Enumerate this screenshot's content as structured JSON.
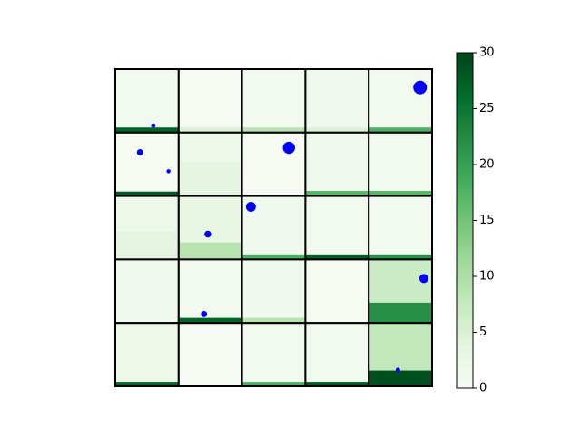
{
  "chart_data": {
    "type": "heatmap",
    "colormap": "Greens",
    "point_color": "#0000ff",
    "xlim": [
      0,
      5
    ],
    "ylim": [
      5,
      0
    ],
    "cells": [
      [
        {
          "top": 1,
          "bottom": 27,
          "split": 0.08
        },
        {
          "top": 0.5,
          "bottom": 5,
          "split": 0.08
        },
        {
          "top": 1,
          "bottom": 9,
          "split": 0.08
        },
        {
          "top": 1.5,
          "bottom": 5,
          "split": 0.08
        },
        {
          "top": 1,
          "bottom": 18,
          "split": 0.08
        }
      ],
      [
        {
          "top": 0.5,
          "bottom": 28,
          "split": 0.07
        },
        {
          "top": 2,
          "bottom": 3.5,
          "split": 0.55
        },
        {
          "top": 0.5,
          "bottom": 0.5,
          "split": 0.08
        },
        {
          "top": 1.5,
          "bottom": 17,
          "split": 0.08
        },
        {
          "top": 1,
          "bottom": 17,
          "split": 0.08
        }
      ],
      [
        {
          "top": 2,
          "bottom": 3.5,
          "split": 0.45
        },
        {
          "top": 3,
          "bottom": 9,
          "split": 0.27
        },
        {
          "top": 1.5,
          "bottom": 18,
          "split": 0.08
        },
        {
          "top": 1,
          "bottom": 28,
          "split": 0.08
        },
        {
          "top": 1,
          "bottom": 22,
          "split": 0.08
        }
      ],
      [
        {
          "top": 1.5,
          "bottom": 1.5,
          "split": 0.08
        },
        {
          "top": 1,
          "bottom": 27,
          "split": 0.08
        },
        {
          "top": 1.5,
          "bottom": 9,
          "split": 0.08
        },
        {
          "top": 0.5,
          "bottom": 0.5,
          "split": 0.08
        },
        {
          "top": 7,
          "bottom": 22,
          "split": 0.32
        }
      ],
      [
        {
          "top": 2,
          "bottom": 27,
          "split": 0.07
        },
        {
          "top": 0.5,
          "bottom": 0.5,
          "split": 0.07
        },
        {
          "top": 1,
          "bottom": 18,
          "split": 0.07
        },
        {
          "top": 1,
          "bottom": 28,
          "split": 0.07
        },
        {
          "top": 8,
          "bottom": 29,
          "split": 0.25
        }
      ]
    ],
    "points": {
      "x": [
        0.6,
        4.81,
        0.39,
        0.84,
        2.74,
        2.14,
        1.46,
        4.87,
        1.4,
        4.46
      ],
      "y": [
        0.89,
        0.29,
        1.31,
        1.61,
        1.24,
        2.17,
        2.6,
        3.3,
        3.86,
        4.74
      ],
      "size": [
        6,
        56,
        12,
        5,
        45,
        30,
        14,
        25,
        12,
        6
      ]
    },
    "clim": [
      0,
      30
    ],
    "cticks": [
      0,
      5,
      10,
      15,
      20,
      25,
      30
    ]
  }
}
